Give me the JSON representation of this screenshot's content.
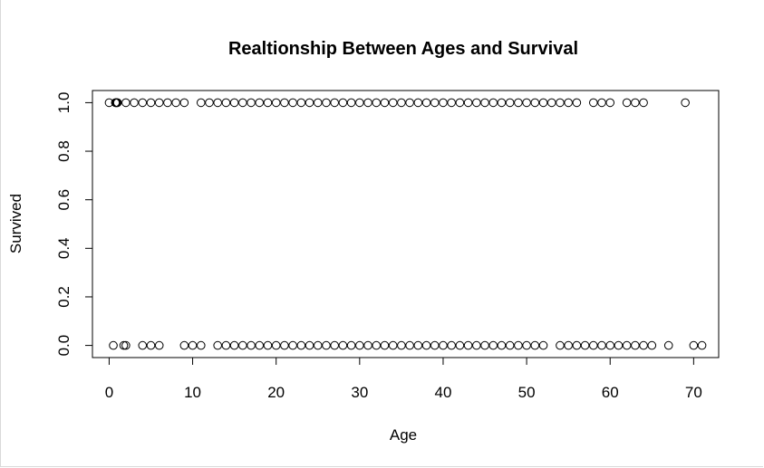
{
  "chart_data": {
    "type": "scatter",
    "title": "Realtionship Between Ages and Survival",
    "xlabel": "Age",
    "ylabel": "Survived",
    "xlim": [
      -2,
      73
    ],
    "ylim": [
      -0.05,
      1.05
    ],
    "x_ticks": [
      0,
      10,
      20,
      30,
      40,
      50,
      60,
      70
    ],
    "y_ticks": [
      0.0,
      0.2,
      0.4,
      0.6,
      0.8,
      1.0
    ],
    "x_tick_labels": [
      "0",
      "10",
      "20",
      "30",
      "40",
      "50",
      "60",
      "70"
    ],
    "y_tick_labels": [
      "0.0",
      "0.2",
      "0.4",
      "0.6",
      "0.8",
      "1.0"
    ],
    "grid": false,
    "legend": "none",
    "marker": "open-circle",
    "series": [
      {
        "x": [
          0,
          0.75,
          0.83,
          0.92,
          1,
          2,
          3,
          4,
          5,
          6,
          7,
          8,
          9,
          11,
          12,
          13,
          14,
          15,
          16,
          17,
          18,
          19,
          20,
          21,
          22,
          23,
          24,
          25,
          26,
          27,
          28,
          29,
          30,
          31,
          32,
          33,
          34,
          35,
          36,
          37,
          38,
          39,
          40,
          41,
          42,
          43,
          44,
          45,
          46,
          47,
          48,
          49,
          50,
          51,
          52,
          53,
          54,
          55,
          56,
          58,
          59,
          60,
          62,
          63,
          64,
          69
        ],
        "y": [
          1,
          1,
          1,
          1,
          1,
          1,
          1,
          1,
          1,
          1,
          1,
          1,
          1,
          1,
          1,
          1,
          1,
          1,
          1,
          1,
          1,
          1,
          1,
          1,
          1,
          1,
          1,
          1,
          1,
          1,
          1,
          1,
          1,
          1,
          1,
          1,
          1,
          1,
          1,
          1,
          1,
          1,
          1,
          1,
          1,
          1,
          1,
          1,
          1,
          1,
          1,
          1,
          1,
          1,
          1,
          1,
          1,
          1,
          1,
          1,
          1,
          1,
          1,
          1,
          1,
          1
        ]
      },
      {
        "x": [
          0.5,
          1.75,
          2,
          4,
          5,
          6,
          9,
          10,
          11,
          13,
          14,
          15,
          16,
          17,
          18,
          19,
          20,
          21,
          22,
          23,
          24,
          25,
          26,
          27,
          28,
          29,
          30,
          31,
          32,
          33,
          34,
          35,
          36,
          37,
          38,
          39,
          40,
          41,
          42,
          43,
          44,
          45,
          46,
          47,
          48,
          49,
          50,
          51,
          52,
          54,
          55,
          56,
          57,
          58,
          59,
          60,
          61,
          62,
          63,
          64,
          65,
          67,
          70,
          71
        ],
        "y": [
          0,
          0,
          0,
          0,
          0,
          0,
          0,
          0,
          0,
          0,
          0,
          0,
          0,
          0,
          0,
          0,
          0,
          0,
          0,
          0,
          0,
          0,
          0,
          0,
          0,
          0,
          0,
          0,
          0,
          0,
          0,
          0,
          0,
          0,
          0,
          0,
          0,
          0,
          0,
          0,
          0,
          0,
          0,
          0,
          0,
          0,
          0,
          0,
          0,
          0,
          0,
          0,
          0,
          0,
          0,
          0,
          0,
          0,
          0,
          0,
          0,
          0,
          0,
          0
        ]
      }
    ]
  }
}
